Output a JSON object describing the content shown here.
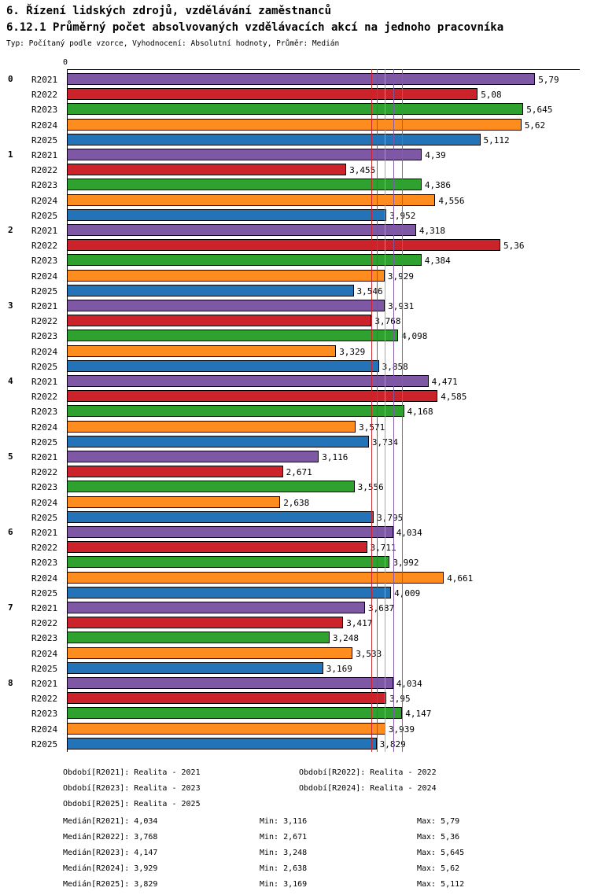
{
  "page": {
    "title1": "6. Řízení lidských zdrojů, vzdělávání zaměstnanců",
    "title2": "6.12.1 Průměrný počet absolvovaných vzdělávacích akcí na jednoho pracovníka",
    "subtitle": "Typ: Počítaný podle vzorce, Vyhodnocení: Absolutní hodnoty, Průměr: Medián"
  },
  "chart_data": {
    "type": "bar",
    "orientation": "horizontal",
    "title": "6.12.1 Průměrný počet absolvovaných vzdělávacích akcí na jednoho pracovníka",
    "axis_origin_label": "0",
    "xlim": [
      0,
      6.3
    ],
    "grid": false,
    "value_format": "decimal-comma",
    "median_lines": true,
    "categories": [
      "0",
      "1",
      "2",
      "3",
      "4",
      "5",
      "6",
      "7",
      "8"
    ],
    "series": [
      {
        "name": "R2021",
        "color": "#7E57A5",
        "median": 4.034,
        "values": [
          5.79,
          4.39,
          4.318,
          3.931,
          4.471,
          3.116,
          4.034,
          3.687,
          4.034
        ]
      },
      {
        "name": "R2022",
        "color": "#CC2229",
        "median": 3.768,
        "values": [
          5.08,
          3.455,
          5.36,
          3.768,
          4.585,
          2.671,
          3.711,
          3.417,
          3.95
        ]
      },
      {
        "name": "R2023",
        "color": "#2EA12E",
        "median": 4.147,
        "values": [
          5.645,
          4.386,
          4.384,
          4.098,
          4.168,
          3.556,
          3.992,
          3.248,
          4.147
        ]
      },
      {
        "name": "R2024",
        "color": "#FF8C1E",
        "median": 3.929,
        "values": [
          5.62,
          4.556,
          3.929,
          3.329,
          3.571,
          2.638,
          4.661,
          3.533,
          3.939
        ]
      },
      {
        "name": "R2025",
        "color": "#2373B9",
        "median": 3.829,
        "values": [
          5.112,
          3.952,
          3.546,
          3.858,
          3.734,
          3.795,
          4.009,
          3.169,
          3.829
        ]
      }
    ]
  },
  "footer": {
    "periods": [
      "Období[R2021]: Realita - 2021",
      "Období[R2022]: Realita - 2022",
      "Období[R2023]: Realita - 2023",
      "Období[R2024]: Realita - 2024",
      "Období[R2025]: Realita - 2025"
    ],
    "stats": [
      {
        "median": "Medián[R2021]: 4,034",
        "min": "Min: 3,116",
        "max": "Max: 5,79"
      },
      {
        "median": "Medián[R2022]: 3,768",
        "min": "Min: 2,671",
        "max": "Max: 5,36"
      },
      {
        "median": "Medián[R2023]: 4,147",
        "min": "Min: 3,248",
        "max": "Max: 5,645"
      },
      {
        "median": "Medián[R2024]: 3,929",
        "min": "Min: 2,638",
        "max": "Max: 5,62"
      },
      {
        "median": "Medián[R2025]: 3,829",
        "min": "Min: 3,169",
        "max": "Max: 5,112"
      }
    ]
  }
}
